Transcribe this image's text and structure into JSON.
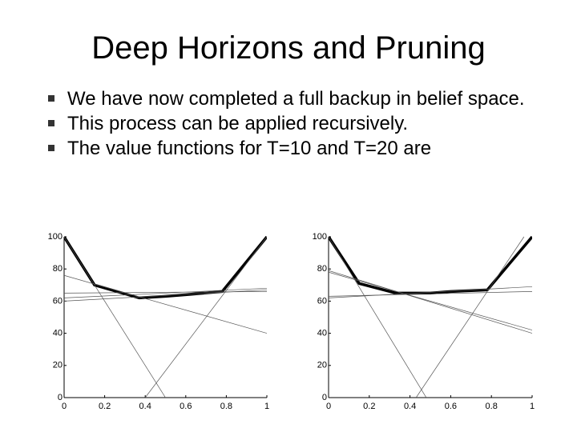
{
  "slide": {
    "title": "Deep Horizons and Pruning",
    "bullets": [
      "We have now completed a full backup in belief space.",
      "This process can be applied recursively.",
      "The value functions for T=10 and T=20 are"
    ]
  },
  "chart_data": [
    {
      "type": "line",
      "xlim": [
        0,
        1
      ],
      "ylim": [
        0,
        100
      ],
      "xticks": [
        0,
        0.2,
        0.4,
        0.6,
        0.8,
        1
      ],
      "yticks": [
        0,
        20,
        40,
        60,
        80,
        100
      ],
      "series": [
        {
          "color": "#000000",
          "width": 3.5,
          "x": [
            0,
            0.15,
            0.37,
            0.5,
            0.6,
            0.78,
            1
          ],
          "values": [
            100,
            70,
            62,
            63,
            64,
            66,
            100
          ]
        },
        {
          "color": "#555555",
          "width": 0.7,
          "x": [
            0,
            0.5
          ],
          "values": [
            100,
            0
          ]
        },
        {
          "color": "#555555",
          "width": 0.7,
          "x": [
            0.4,
            1
          ],
          "values": [
            0,
            100
          ]
        },
        {
          "color": "#555555",
          "width": 0.7,
          "x": [
            0,
            1
          ],
          "values": [
            76,
            40
          ]
        },
        {
          "color": "#555555",
          "width": 0.7,
          "x": [
            0,
            1
          ],
          "values": [
            65,
            66
          ]
        },
        {
          "color": "#555555",
          "width": 0.7,
          "x": [
            0,
            1
          ],
          "values": [
            62,
            68
          ]
        },
        {
          "color": "#555555",
          "width": 0.7,
          "x": [
            0,
            1
          ],
          "values": [
            60,
            67
          ]
        }
      ]
    },
    {
      "type": "line",
      "xlim": [
        0,
        1
      ],
      "ylim": [
        0,
        100
      ],
      "xticks": [
        0,
        0.2,
        0.4,
        0.6,
        0.8,
        1
      ],
      "yticks": [
        0,
        20,
        40,
        60,
        80,
        100
      ],
      "series": [
        {
          "color": "#000000",
          "width": 3.5,
          "x": [
            0,
            0.15,
            0.33,
            0.5,
            0.6,
            0.78,
            1
          ],
          "values": [
            100,
            71,
            65,
            65,
            66,
            67,
            100
          ]
        },
        {
          "color": "#555555",
          "width": 0.7,
          "x": [
            0,
            0.48
          ],
          "values": [
            100,
            0
          ]
        },
        {
          "color": "#555555",
          "width": 0.7,
          "x": [
            0.43,
            0.96
          ],
          "values": [
            0,
            100
          ]
        },
        {
          "color": "#555555",
          "width": 0.7,
          "x": [
            0,
            1
          ],
          "values": [
            79,
            40
          ]
        },
        {
          "color": "#555555",
          "width": 0.7,
          "x": [
            0,
            1
          ],
          "values": [
            78,
            42
          ]
        },
        {
          "color": "#555555",
          "width": 0.7,
          "x": [
            0,
            1
          ],
          "values": [
            62,
            69
          ]
        },
        {
          "color": "#555555",
          "width": 0.7,
          "x": [
            0,
            1
          ],
          "values": [
            63,
            66
          ]
        }
      ]
    }
  ]
}
